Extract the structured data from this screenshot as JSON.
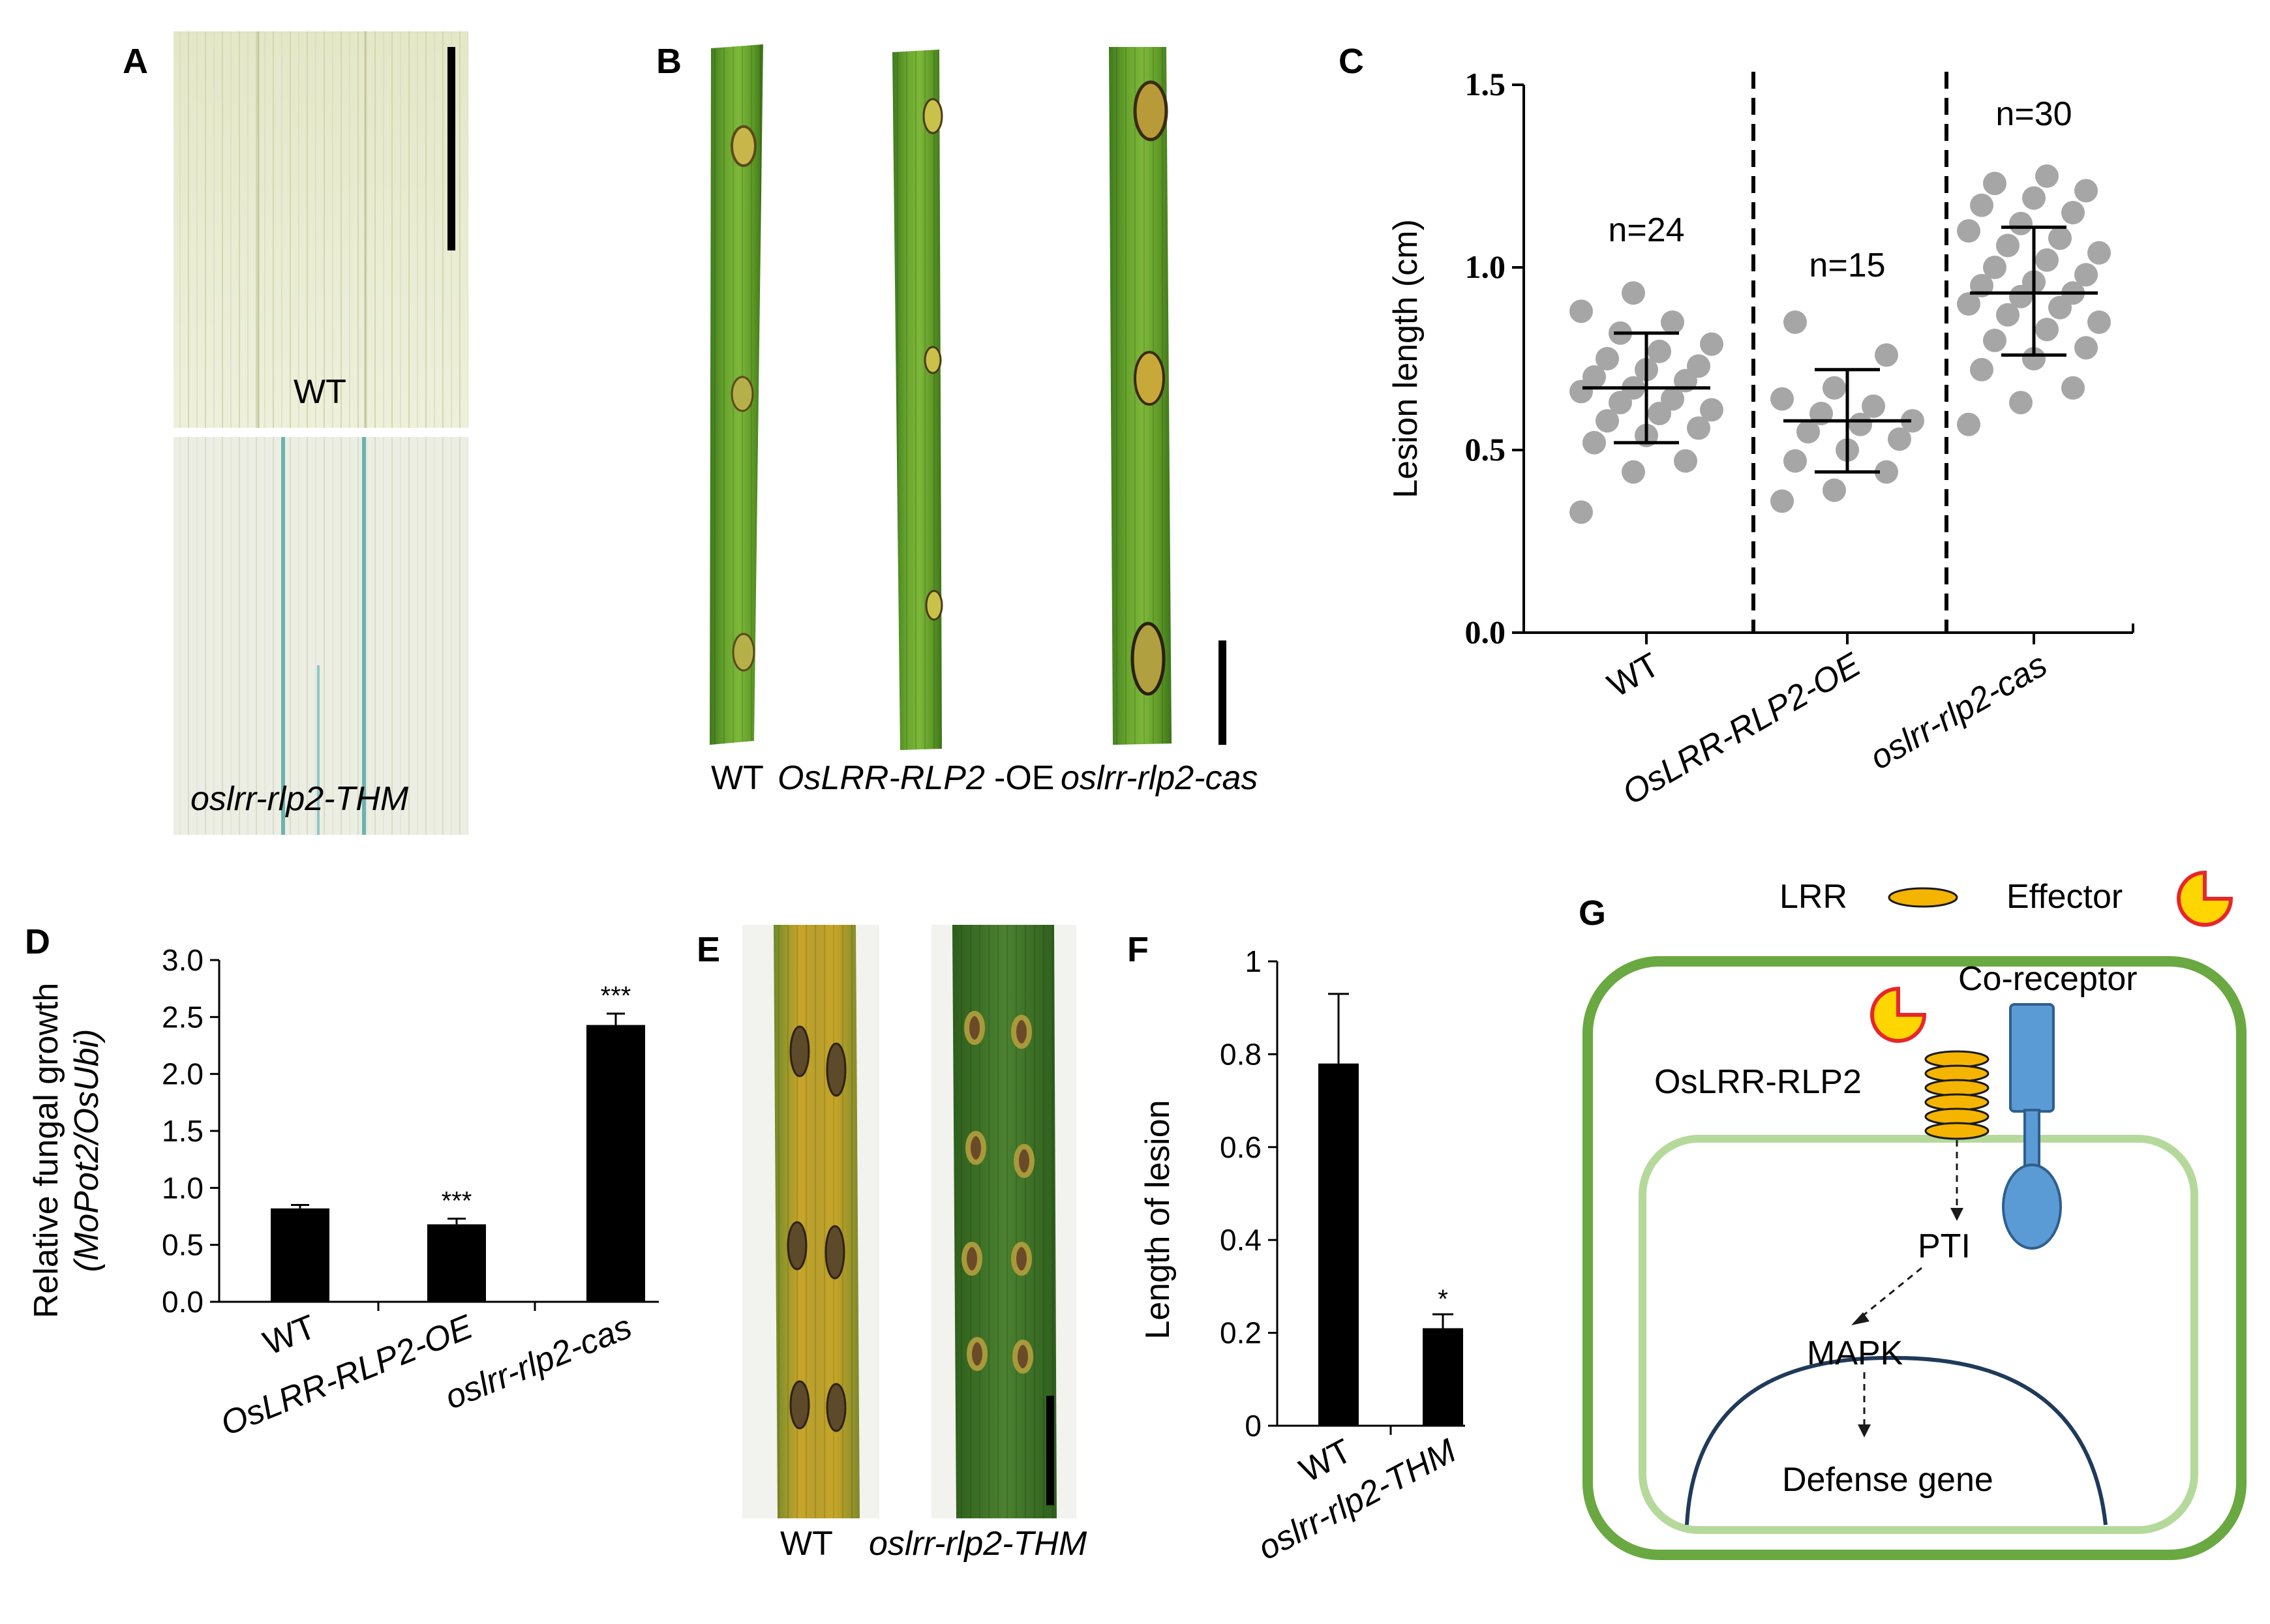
{
  "panels": {
    "A": {
      "letter": "A",
      "top_label": "WT",
      "bottom_label": "oslrr-rlp2-THM"
    },
    "B": {
      "letter": "B",
      "labels": [
        "WT",
        "OsLRR-RLP2",
        "-OE",
        "oslrr-rlp2-cas"
      ]
    },
    "E": {
      "letter": "E",
      "labels": [
        "WT",
        "oslrr-rlp2-THM"
      ]
    },
    "G": {
      "letter": "G",
      "legend_lrr": "LRR",
      "legend_effector": "Effector",
      "coreceptor": "Co-receptor",
      "receptor": "OsLRR-RLP2",
      "pti": "PTI",
      "mapk": "MAPK",
      "defense": "Defense gene",
      "colors": {
        "cell_outer": "#6aa842",
        "cell_inner": "#b5d99b",
        "lrr_fill": "#f5b400",
        "effector_fill": "#ffd600",
        "effector_edge": "#e8262b",
        "coreceptor_fill": "#5b9bd5",
        "nucleus": "#1f3a5a"
      }
    }
  },
  "chart_data": [
    {
      "panel": "C",
      "type": "scatter",
      "ylabel": "Lesion length (cm)",
      "ylim": [
        0,
        1.5
      ],
      "yticks": [
        "0.0",
        "0.5",
        "1.0",
        "1.5"
      ],
      "categories": [
        "WT",
        "OsLRR-RLP2-OE",
        "oslrr-rlp2-cas"
      ],
      "n_labels": [
        "n=24",
        "n=15",
        "n=30"
      ],
      "point_color": "#a6a6a6",
      "series": [
        {
          "mean": 0.67,
          "sd_low": 0.52,
          "sd_high": 0.82,
          "values": [
            0.33,
            0.44,
            0.47,
            0.52,
            0.54,
            0.56,
            0.58,
            0.6,
            0.61,
            0.63,
            0.64,
            0.66,
            0.67,
            0.69,
            0.7,
            0.72,
            0.73,
            0.75,
            0.77,
            0.79,
            0.82,
            0.85,
            0.88,
            0.93
          ]
        },
        {
          "mean": 0.58,
          "sd_low": 0.44,
          "sd_high": 0.72,
          "values": [
            0.36,
            0.39,
            0.44,
            0.47,
            0.5,
            0.53,
            0.55,
            0.57,
            0.58,
            0.6,
            0.62,
            0.64,
            0.67,
            0.76,
            0.85
          ]
        },
        {
          "mean": 0.93,
          "sd_low": 0.76,
          "sd_high": 1.11,
          "values": [
            0.57,
            0.63,
            0.67,
            0.72,
            0.75,
            0.78,
            0.8,
            0.83,
            0.85,
            0.87,
            0.89,
            0.9,
            0.92,
            0.93,
            0.95,
            0.96,
            0.98,
            1.0,
            1.02,
            1.04,
            1.06,
            1.08,
            1.1,
            1.12,
            1.15,
            1.17,
            1.19,
            1.21,
            1.23,
            1.25
          ]
        }
      ]
    },
    {
      "panel": "D",
      "type": "bar",
      "ylabel": "Relative fungal growth",
      "ylabel2": "(MoPot2/OsUbi)",
      "ylim": [
        0,
        3.0
      ],
      "yticks": [
        "0.0",
        "0.5",
        "1.0",
        "1.5",
        "2.0",
        "2.5",
        "3.0"
      ],
      "categories": [
        "WT",
        "OsLRR-RLP2-OE",
        "oslrr-rlp2-cas"
      ],
      "values": [
        0.82,
        0.68,
        2.43
      ],
      "errors": [
        0.03,
        0.05,
        0.1
      ],
      "annotations": [
        "",
        "***",
        "***"
      ]
    },
    {
      "panel": "F",
      "type": "bar",
      "ylabel": "Length of lesion",
      "ylim": [
        0,
        1
      ],
      "yticks": [
        "0",
        "0.2",
        "0.4",
        "0.6",
        "0.8",
        "1"
      ],
      "categories": [
        "WT",
        "oslrr-rlp2-THM"
      ],
      "values": [
        0.78,
        0.21
      ],
      "errors": [
        0.15,
        0.03
      ],
      "annotations": [
        "",
        "*"
      ]
    }
  ]
}
